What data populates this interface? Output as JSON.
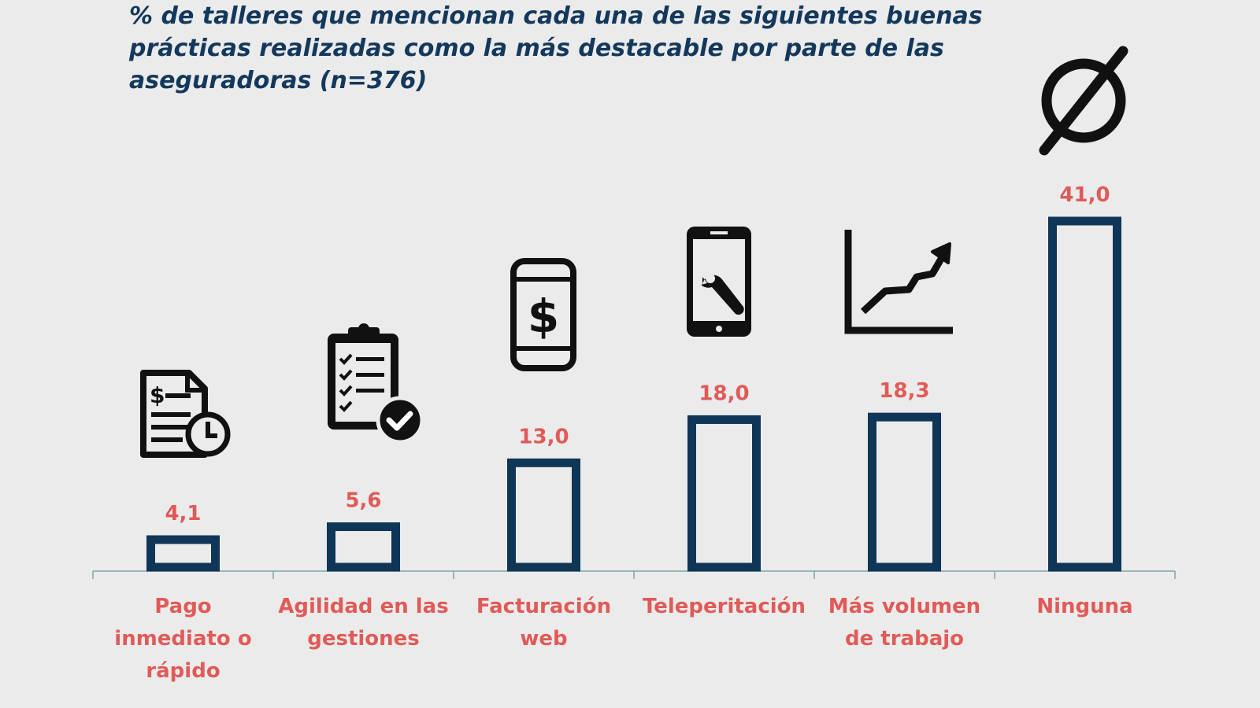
{
  "chart_data": {
    "type": "bar",
    "title": "% de talleres que mencionan cada una de las siguientes buenas prácticas realizadas como la más destacable por parte de las aseguradoras (n=376)",
    "xlabel": "",
    "ylabel": "",
    "ylim": [
      0,
      41
    ],
    "grid": false,
    "legend": "none",
    "categories": [
      [
        "Pago",
        "inmediato o",
        "rápido"
      ],
      [
        "Agilidad en las",
        "gestiones"
      ],
      [
        "Facturación",
        "web"
      ],
      [
        "Teleperitación"
      ],
      [
        "Más volumen",
        "de trabajo"
      ],
      [
        "Ninguna"
      ]
    ],
    "values": [
      4.1,
      5.6,
      13.0,
      18.0,
      18.3,
      41.0
    ],
    "value_labels": [
      "4,1",
      "5,6",
      "13,0",
      "18,0",
      "18,3",
      "41,0"
    ],
    "icons": [
      "invoice-clock-icon",
      "clipboard-check-icon",
      "phone-dollar-icon",
      "phone-wrench-icon",
      "growth-chart-icon",
      "empty-set-icon"
    ]
  },
  "colors": {
    "bar_stroke": "#0f3656",
    "label_red": "#e05b58",
    "title_blue": "#13385c",
    "axis": "#7fa3a8",
    "icon": "#111111"
  }
}
